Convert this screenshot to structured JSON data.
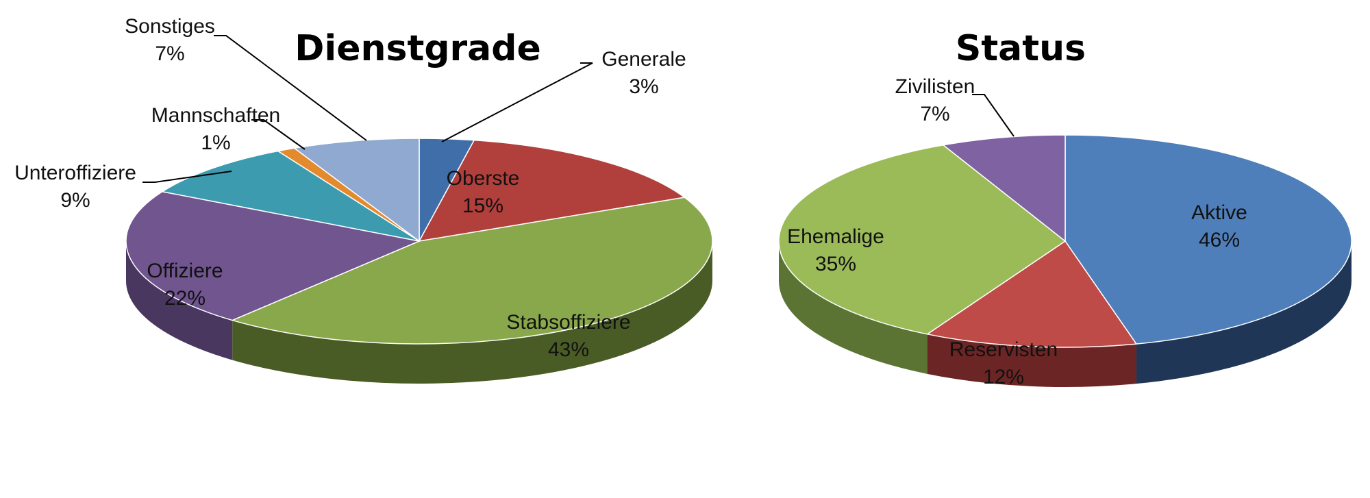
{
  "chart_data": [
    {
      "type": "pie",
      "title": "Dienstgrade",
      "slices": [
        {
          "label": "Generale",
          "value": 3,
          "value_label": "3%",
          "color": "#3f6ea8",
          "side_color": "#27456a"
        },
        {
          "label": "Oberste",
          "value": 15,
          "value_label": "15%",
          "color": "#b13f3c",
          "side_color": "#6e2624"
        },
        {
          "label": "Stabsoffiziere",
          "value": 43,
          "value_label": "43%",
          "color": "#89a84b",
          "side_color": "#4a5c25"
        },
        {
          "label": "Offiziere",
          "value": 22,
          "value_label": "22%",
          "color": "#71558f",
          "side_color": "#4a3760"
        },
        {
          "label": "Unteroffiziere",
          "value": 9,
          "value_label": "9%",
          "color": "#3d9bb0",
          "side_color": "#266474"
        },
        {
          "label": "Mannschaften",
          "value": 1,
          "value_label": "1%",
          "color": "#e38a2e",
          "side_color": "#9a5c1c"
        },
        {
          "label": "Sonstiges",
          "value": 7,
          "value_label": "7%",
          "color": "#8fa9d1",
          "side_color": "#5f7494"
        }
      ]
    },
    {
      "type": "pie",
      "title": "Status",
      "slices": [
        {
          "label": "Aktive",
          "value": 46,
          "value_label": "46%",
          "color": "#4f7fba",
          "side_color": "#1f3656"
        },
        {
          "label": "Reservisten",
          "value": 12,
          "value_label": "12%",
          "color": "#bf4b48",
          "side_color": "#6b2524"
        },
        {
          "label": "Ehemalige",
          "value": 35,
          "value_label": "35%",
          "color": "#9bbb59",
          "side_color": "#5b7333"
        },
        {
          "label": "Zivilisten",
          "value": 7,
          "value_label": "7%",
          "color": "#7f62a1",
          "side_color": "#4f3c66"
        }
      ]
    }
  ]
}
